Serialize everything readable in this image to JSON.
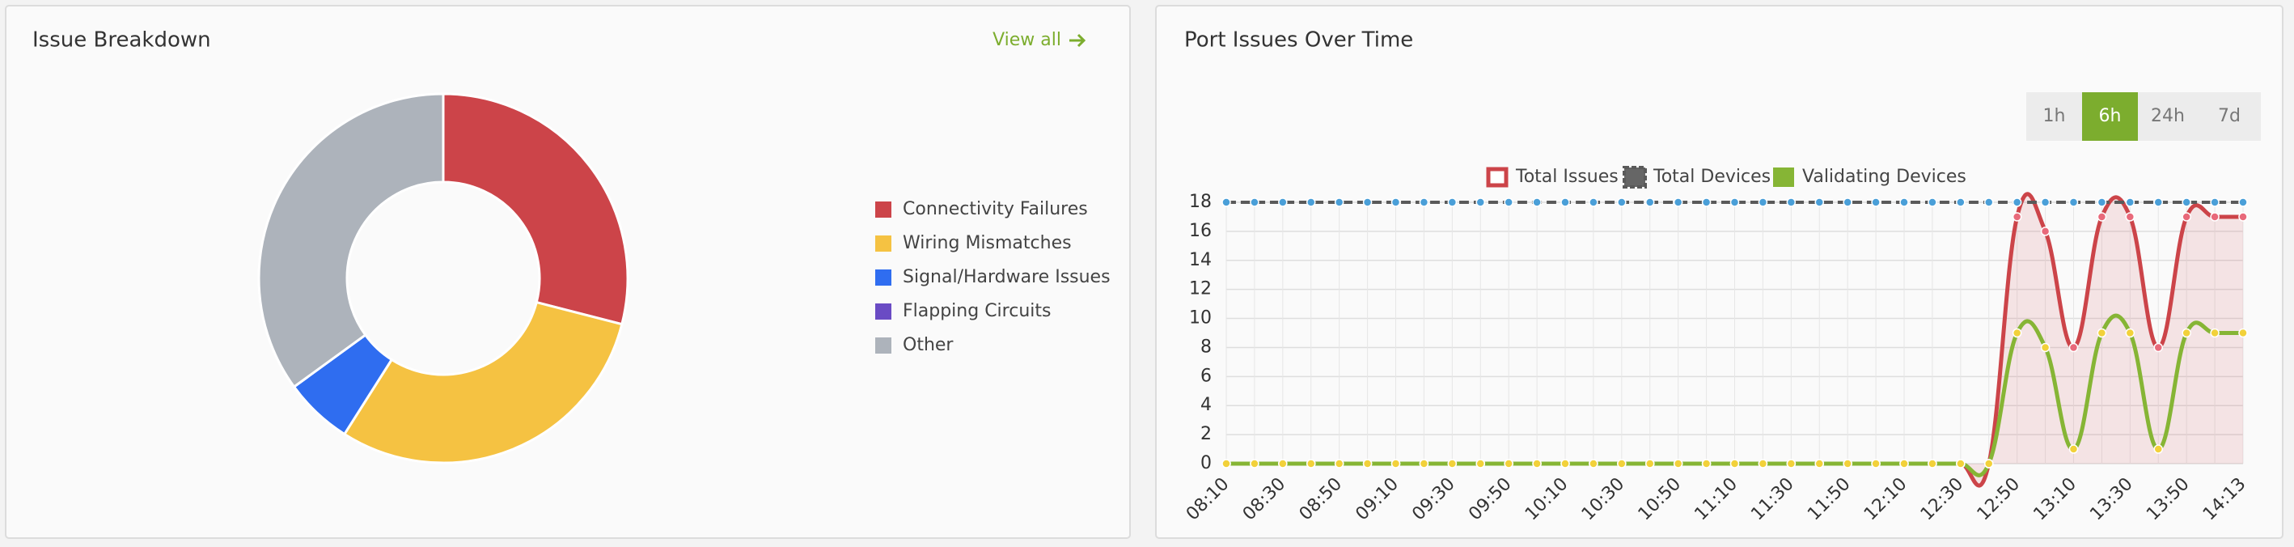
{
  "chart_data": [
    {
      "type": "pie",
      "title": "Issue Breakdown",
      "donut": true,
      "categories": [
        "Connectivity Failures",
        "Wiring Mismatches",
        "Signal/Hardware Issues",
        "Flapping Circuits",
        "Other"
      ],
      "values": [
        29,
        30,
        6,
        0,
        35
      ],
      "colors": [
        "#cc4449",
        "#f5c242",
        "#2f6df0",
        "#6a4bc4",
        "#adb3bb"
      ],
      "legend": "right"
    },
    {
      "type": "line",
      "title": "Port Issues Over Time",
      "categories": [
        "08:10",
        null,
        "08:30",
        null,
        "08:50",
        null,
        "09:10",
        null,
        "09:30",
        null,
        "09:50",
        null,
        "10:10",
        null,
        "10:30",
        null,
        "10:50",
        null,
        "11:10",
        null,
        "11:30",
        null,
        "11:50",
        null,
        "12:10",
        null,
        "12:30",
        null,
        "12:50",
        null,
        "13:10",
        null,
        "13:30",
        null,
        "13:50",
        null,
        "14:13"
      ],
      "series": [
        {
          "name": "Total Issues",
          "color": "#cc4449",
          "marker_color": "#e8697a",
          "fill": "rgba(204,68,73,0.12)",
          "values": [
            0,
            0,
            0,
            0,
            0,
            0,
            0,
            0,
            0,
            0,
            0,
            0,
            0,
            0,
            0,
            0,
            0,
            0,
            0,
            0,
            0,
            0,
            0,
            0,
            0,
            0,
            0,
            0,
            17,
            16,
            8,
            17,
            17,
            8,
            17,
            17,
            17
          ]
        },
        {
          "name": "Total Devices",
          "color": "#5a5a5a",
          "marker_color": "#4a9fd8",
          "dashed": true,
          "values": [
            18,
            18,
            18,
            18,
            18,
            18,
            18,
            18,
            18,
            18,
            18,
            18,
            18,
            18,
            18,
            18,
            18,
            18,
            18,
            18,
            18,
            18,
            18,
            18,
            18,
            18,
            18,
            18,
            18,
            18,
            18,
            18,
            18,
            18,
            18,
            18,
            18
          ]
        },
        {
          "name": "Validating Devices",
          "color": "#86b535",
          "marker_color": "#f2d13a",
          "values": [
            0,
            0,
            0,
            0,
            0,
            0,
            0,
            0,
            0,
            0,
            0,
            0,
            0,
            0,
            0,
            0,
            0,
            0,
            0,
            0,
            0,
            0,
            0,
            0,
            0,
            0,
            0,
            0,
            9,
            8,
            1,
            9,
            9,
            1,
            9,
            9,
            9
          ]
        }
      ],
      "ylim": [
        0,
        18
      ],
      "yticks": [
        0,
        2,
        4,
        6,
        8,
        10,
        12,
        14,
        16,
        18
      ],
      "grid": true,
      "legend": "top"
    }
  ],
  "controls": {
    "link": "View all",
    "time_ranges": [
      "1h",
      "6h",
      "24h",
      "7d"
    ],
    "active_range": "6h"
  }
}
